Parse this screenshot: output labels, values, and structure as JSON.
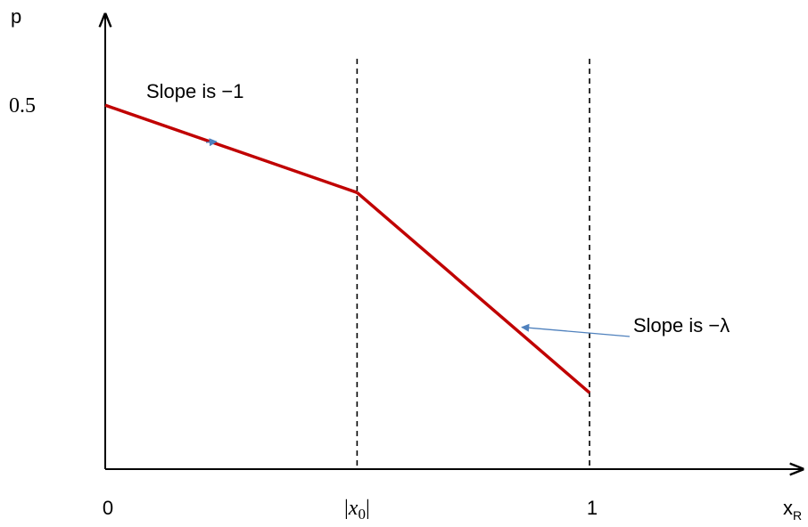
{
  "chart_data": {
    "type": "line",
    "ylabel": "p",
    "xlabel": "x",
    "xlabel_subscript": "R",
    "x_ticks": [
      {
        "value": 0,
        "label": "0"
      },
      {
        "value": 0.52,
        "label": "|x0|",
        "label_main": "x",
        "label_sub": "0"
      },
      {
        "value": 1,
        "label": "1"
      }
    ],
    "y_ticks": [
      {
        "value": 0.5,
        "label": "0.5"
      }
    ],
    "xlim": [
      0,
      1.44
    ],
    "ylim": [
      0,
      0.625
    ],
    "series": [
      {
        "points": [
          {
            "x": 0,
            "y": 0.5
          },
          {
            "x": 0.52,
            "y": 0.38
          },
          {
            "x": 1,
            "y": 0.105
          }
        ],
        "color": "#c00000"
      }
    ],
    "reference_lines": [
      {
        "x": 0.52,
        "style": "dashed"
      },
      {
        "x": 1,
        "style": "dashed"
      }
    ],
    "annotations": [
      {
        "text": "Slope is −1",
        "target_x": 0.23,
        "target_y": 0.45,
        "arrow_color": "#4f81bd"
      },
      {
        "text": "Slope is −λ",
        "target_x": 0.86,
        "target_y": 0.195,
        "arrow_color": "#4f81bd"
      }
    ],
    "grid": false,
    "axis_color": "#000000"
  }
}
